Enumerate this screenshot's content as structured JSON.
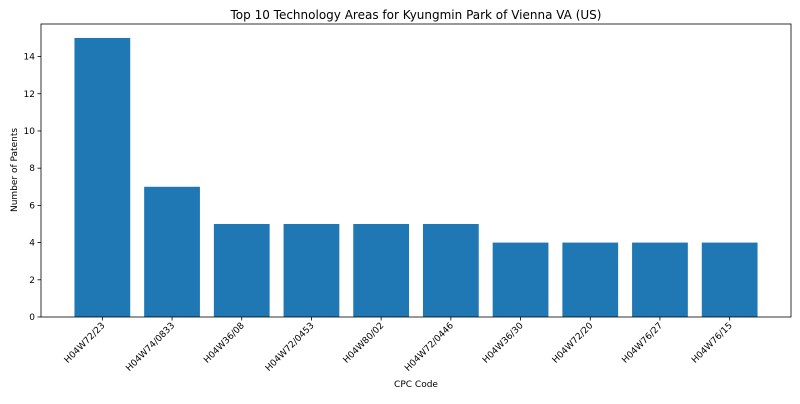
{
  "chart_data": {
    "type": "bar",
    "title": "Top 10 Technology Areas for Kyungmin Park of Vienna VA (US)",
    "xlabel": "CPC Code",
    "ylabel": "Number of Patents",
    "categories": [
      "H04W72/23",
      "H04W74/0833",
      "H04W36/08",
      "H04W72/0453",
      "H04W80/02",
      "H04W72/0446",
      "H04W36/30",
      "H04W72/20",
      "H04W76/27",
      "H04W76/15"
    ],
    "values": [
      15,
      7,
      5,
      5,
      5,
      5,
      4,
      4,
      4,
      4
    ],
    "ylim": [
      0,
      15.75
    ],
    "yticks": [
      0,
      2,
      4,
      6,
      8,
      10,
      12,
      14
    ],
    "grid": false,
    "bar_color": "#1f77b4"
  }
}
